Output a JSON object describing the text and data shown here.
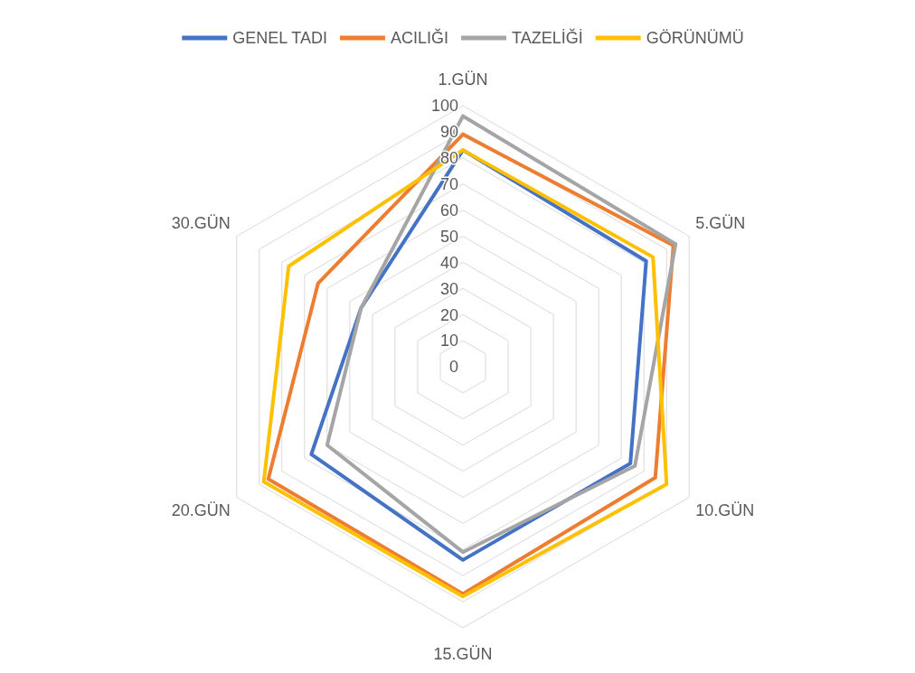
{
  "chart_data": {
    "type": "radar",
    "categories": [
      "1.GÜN",
      "5.GÜN",
      "10.GÜN",
      "15.GÜN",
      "20.GÜN",
      "30.GÜN"
    ],
    "series": [
      {
        "name": "GENEL TADI",
        "color": "#4472c4",
        "values": [
          83,
          81,
          74,
          74,
          67,
          45
        ]
      },
      {
        "name": "ACILIĞI",
        "color": "#ed7d31",
        "values": [
          89,
          93,
          85,
          87,
          86,
          64
        ]
      },
      {
        "name": "TAZELİĞİ",
        "color": "#a5a5a5",
        "values": [
          96,
          94,
          76,
          71,
          60,
          45
        ]
      },
      {
        "name": "GÖRÜNÜMÜ",
        "color": "#ffc000",
        "values": [
          83,
          84,
          90,
          88,
          88,
          77
        ]
      }
    ],
    "ylim": [
      0,
      100
    ],
    "yticks": [
      0,
      10,
      20,
      30,
      40,
      50,
      60,
      70,
      80,
      90,
      100
    ],
    "grid": true,
    "legend": "top",
    "marker": "none"
  }
}
